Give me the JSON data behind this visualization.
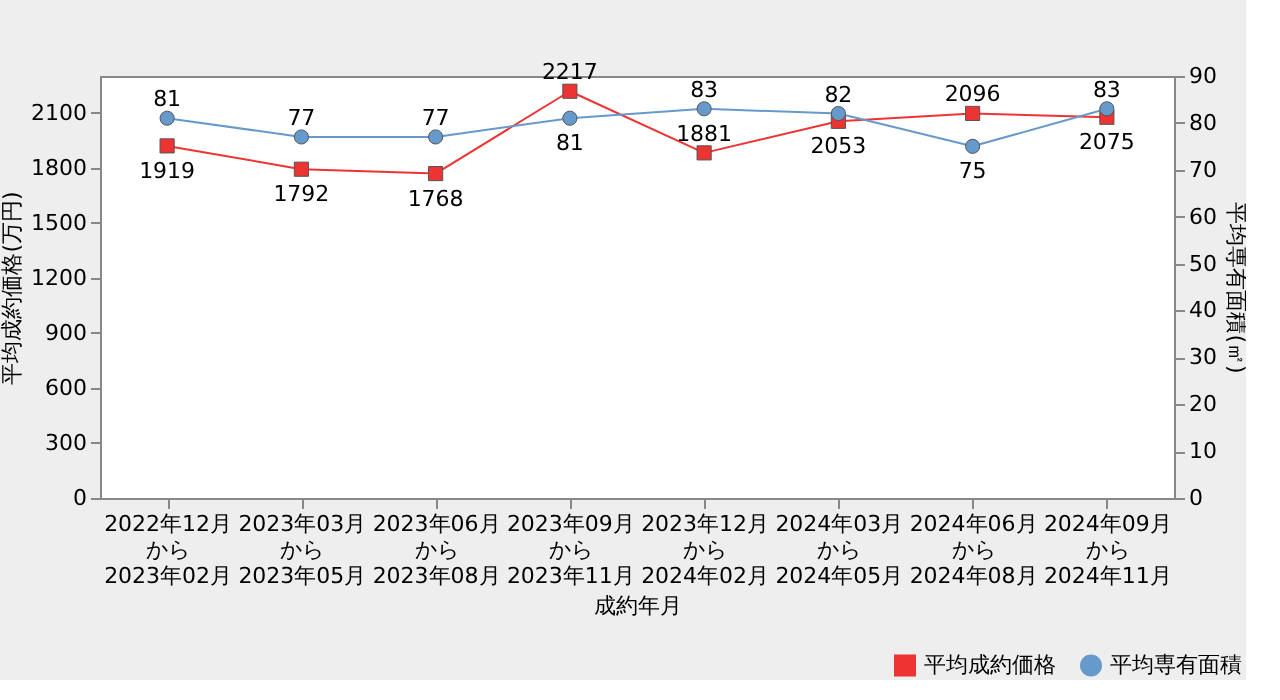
{
  "chart_data": {
    "type": "line",
    "xlabel": "成約年月",
    "ylabel": "平均成約価格(万円)",
    "y2label": "平均専有面積(㎡)",
    "categories": [
      "2022年12月から2023年02月",
      "2023年03月から2023年05月",
      "2023年06月から2023年08月",
      "2023年09月から2023年11月",
      "2023年12月から2024年02月",
      "2024年03月から2024年05月",
      "2024年06月から2024年08月",
      "2024年09月から2024年11月"
    ],
    "series": [
      {
        "name": "平均成約価格",
        "color": "#ee3333",
        "marker": "square",
        "values": [
          1919,
          1792,
          1768,
          2217,
          1881,
          2053,
          2096,
          2075
        ]
      },
      {
        "name": "平均専有面積",
        "color": "#6699cc",
        "marker": "circle",
        "axis": "y2",
        "values": [
          81,
          77,
          77,
          81,
          83,
          82,
          75,
          83
        ]
      }
    ],
    "ylim": [
      0,
      2300
    ],
    "yticks": [
      0,
      300,
      600,
      900,
      1200,
      1500,
      1800,
      2100
    ],
    "y2lim": [
      0,
      90
    ],
    "y2ticks": [
      0,
      10,
      20,
      30,
      40,
      50,
      60,
      70,
      80,
      90
    ],
    "data_labels": true,
    "grid": false,
    "legend": "bottom right",
    "line_style": "solid"
  }
}
